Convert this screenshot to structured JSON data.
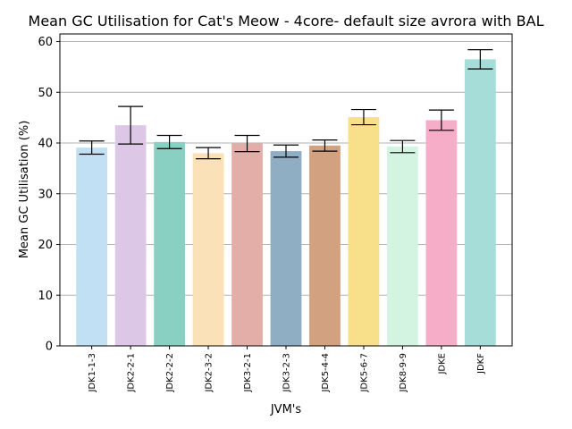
{
  "chart_data": {
    "type": "bar",
    "title": "Mean GC Utilisation for Cat's Meow - 4core- default size avrora with BAL",
    "xlabel": "JVM's",
    "ylabel": "Mean GC Utilisation (%)",
    "ylim": [
      0,
      61.5
    ],
    "yticks": [
      0,
      10,
      20,
      30,
      40,
      50,
      60
    ],
    "grid": "horizontal",
    "categories": [
      "JDK1-1-3",
      "JDK2-2-1",
      "JDK2-2-2",
      "JDK2-3-2",
      "JDK3-2-1",
      "JDK3-2-3",
      "JDK5-4-4",
      "JDK5-6-7",
      "JDK8-9-9",
      "JDKE",
      "JDKF"
    ],
    "values": [
      39.1,
      43.5,
      40.2,
      38.0,
      39.9,
      38.4,
      39.5,
      45.1,
      39.3,
      44.5,
      56.5
    ],
    "errors": [
      1.3,
      3.7,
      1.3,
      1.1,
      1.6,
      1.2,
      1.1,
      1.5,
      1.2,
      2.0,
      1.9
    ],
    "colors": [
      "#c2e0f4",
      "#dcc7e7",
      "#8ad0c2",
      "#fbe1b7",
      "#e3aea7",
      "#8faec4",
      "#d2a17f",
      "#f8e08a",
      "#d4f4e2",
      "#f6aec8",
      "#a6ddd8"
    ]
  }
}
